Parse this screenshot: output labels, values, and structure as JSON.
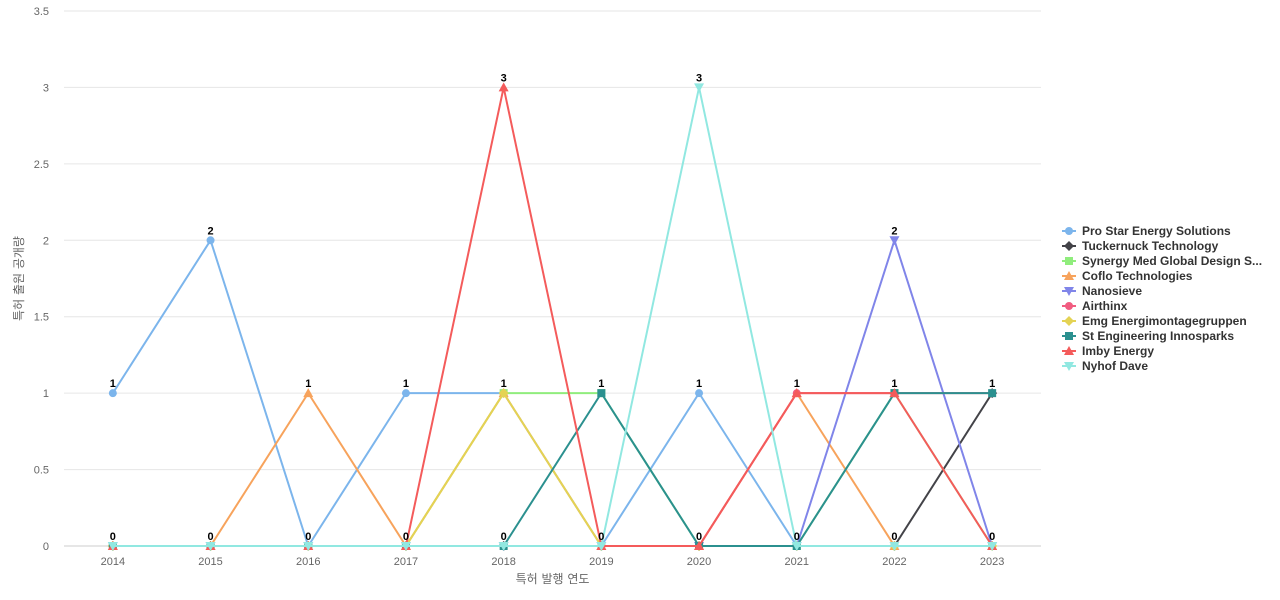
{
  "chart_data": {
    "type": "line",
    "title": "",
    "xlabel": "특허 발행 연도",
    "ylabel": "특허 출원 공개량",
    "categories": [
      "2014",
      "2015",
      "2016",
      "2017",
      "2018",
      "2019",
      "2020",
      "2021",
      "2022",
      "2023"
    ],
    "ylim": [
      0,
      3.5
    ],
    "yticks": [
      "0",
      "0.5",
      "1",
      "1.5",
      "2",
      "2.5",
      "3",
      "3.5"
    ],
    "grid": true,
    "legend": "right",
    "series": [
      {
        "name": "Pro Star Energy Solutions",
        "values": [
          1,
          2,
          0,
          1,
          1,
          0,
          1,
          0,
          0,
          0
        ],
        "color": "#7cb5ec",
        "marker": "circle"
      },
      {
        "name": "Tuckernuck Technology",
        "values": [
          0,
          0,
          0,
          0,
          0,
          0,
          0,
          0,
          0,
          1
        ],
        "color": "#434348",
        "marker": "diamond"
      },
      {
        "name": "Synergy Med Global Design S...",
        "values": [
          0,
          0,
          0,
          0,
          1,
          1,
          0,
          0,
          1,
          0
        ],
        "color": "#90ed7d",
        "marker": "square"
      },
      {
        "name": "Coflo Technologies",
        "values": [
          0,
          0,
          1,
          0,
          1,
          0,
          0,
          1,
          0,
          0
        ],
        "color": "#f7a35c",
        "marker": "triangle"
      },
      {
        "name": "Nanosieve",
        "values": [
          0,
          0,
          0,
          0,
          0,
          0,
          0,
          0,
          2,
          0
        ],
        "color": "#8085e9",
        "marker": "triangle-down"
      },
      {
        "name": "Airthinx",
        "values": [
          0,
          0,
          0,
          0,
          0,
          0,
          0,
          1,
          1,
          1
        ],
        "color": "#f15c80",
        "marker": "circle"
      },
      {
        "name": "Emg Energimontagegruppen",
        "values": [
          0,
          0,
          0,
          0,
          1,
          0,
          0,
          0,
          0,
          0
        ],
        "color": "#e4d354",
        "marker": "diamond"
      },
      {
        "name": "St Engineering Innosparks",
        "values": [
          0,
          0,
          0,
          0,
          0,
          1,
          0,
          0,
          1,
          1
        ],
        "color": "#2b908f",
        "marker": "square"
      },
      {
        "name": "Imby Energy",
        "values": [
          0,
          0,
          0,
          0,
          3,
          0,
          0,
          1,
          1,
          0
        ],
        "color": "#f45b5b",
        "marker": "triangle"
      },
      {
        "name": "Nyhof Dave",
        "values": [
          0,
          0,
          0,
          0,
          0,
          0,
          3,
          0,
          0,
          0
        ],
        "color": "#91e8e1",
        "marker": "triangle-down"
      }
    ],
    "data_labels": [
      {
        "category": "2014",
        "value": 1,
        "text": "1"
      },
      {
        "category": "2014",
        "value": 0,
        "text": "0"
      },
      {
        "category": "2015",
        "value": 2,
        "text": "2"
      },
      {
        "category": "2015",
        "value": 0,
        "text": "0"
      },
      {
        "category": "2016",
        "value": 1,
        "text": "1"
      },
      {
        "category": "2016",
        "value": 0,
        "text": "0"
      },
      {
        "category": "2017",
        "value": 1,
        "text": "1"
      },
      {
        "category": "2017",
        "value": 0,
        "text": "0"
      },
      {
        "category": "2018",
        "value": 3,
        "text": "3"
      },
      {
        "category": "2018",
        "value": 1,
        "text": "1"
      },
      {
        "category": "2018",
        "value": 0,
        "text": "0"
      },
      {
        "category": "2019",
        "value": 1,
        "text": "1"
      },
      {
        "category": "2019",
        "value": 0,
        "text": "0"
      },
      {
        "category": "2020",
        "value": 3,
        "text": "3"
      },
      {
        "category": "2020",
        "value": 1,
        "text": "1"
      },
      {
        "category": "2020",
        "value": 0,
        "text": "0"
      },
      {
        "category": "2021",
        "value": 1,
        "text": "1"
      },
      {
        "category": "2021",
        "value": 0,
        "text": "0"
      },
      {
        "category": "2022",
        "value": 2,
        "text": "2"
      },
      {
        "category": "2022",
        "value": 1,
        "text": "1"
      },
      {
        "category": "2022",
        "value": 0,
        "text": "0"
      },
      {
        "category": "2023",
        "value": 1,
        "text": "1"
      },
      {
        "category": "2023",
        "value": 0,
        "text": "0"
      }
    ]
  }
}
